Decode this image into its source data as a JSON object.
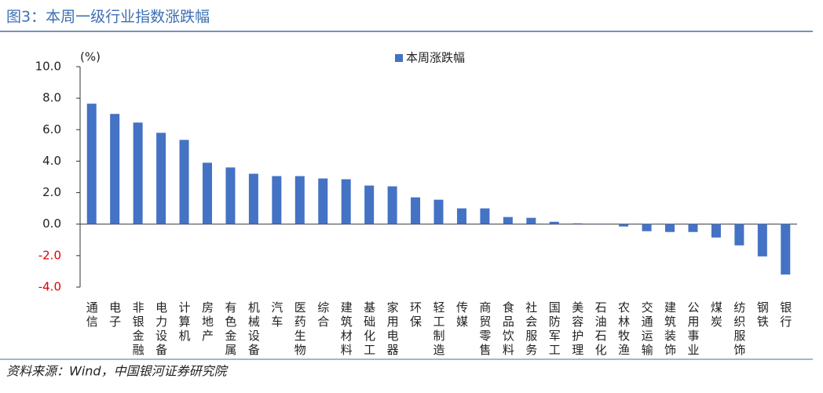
{
  "chart_data": {
    "type": "bar",
    "title": "图3：本周一级行业指数涨跌幅",
    "source": "资料来源：Wind，中国银河证券研究院",
    "y_unit": "(%)",
    "categories": [
      "通信",
      "电子",
      "非银金融",
      "电力设备",
      "计算机",
      "房地产",
      "有色金属",
      "机械设备",
      "汽车",
      "医药生物",
      "综合",
      "建筑材料",
      "基础化工",
      "家用电器",
      "环保",
      "轻工制造",
      "传媒",
      "商贸零售",
      "食品饮料",
      "社会服务",
      "国防军工",
      "美容护理",
      "石油石化",
      "农林牧渔",
      "交通运输",
      "建筑装饰",
      "公用事业",
      "煤炭",
      "纺织服饰",
      "钢铁",
      "银行"
    ],
    "series": [
      {
        "name": "本周涨跌幅",
        "color": "#4472c4",
        "values": [
          7.65,
          7.0,
          6.45,
          5.8,
          5.35,
          3.9,
          3.6,
          3.2,
          3.05,
          3.05,
          2.9,
          2.85,
          2.45,
          2.4,
          1.7,
          1.55,
          1.0,
          1.0,
          0.45,
          0.4,
          0.15,
          0.05,
          0.02,
          -0.15,
          -0.45,
          -0.5,
          -0.5,
          -0.85,
          -1.35,
          -2.05,
          -3.2
        ]
      }
    ],
    "ylim": [
      -4,
      10
    ],
    "yticks": [
      {
        "value": -4,
        "label": "-4.0"
      },
      {
        "value": -2,
        "label": "-2.0"
      },
      {
        "value": 0,
        "label": "0.0"
      },
      {
        "value": 2,
        "label": "2.0"
      },
      {
        "value": 4,
        "label": "4.0"
      },
      {
        "value": 6,
        "label": "6.0"
      },
      {
        "value": 8,
        "label": "8.0"
      },
      {
        "value": 10,
        "label": "10.0"
      }
    ],
    "negative_tick_color": "#e00000",
    "legend": "top"
  }
}
